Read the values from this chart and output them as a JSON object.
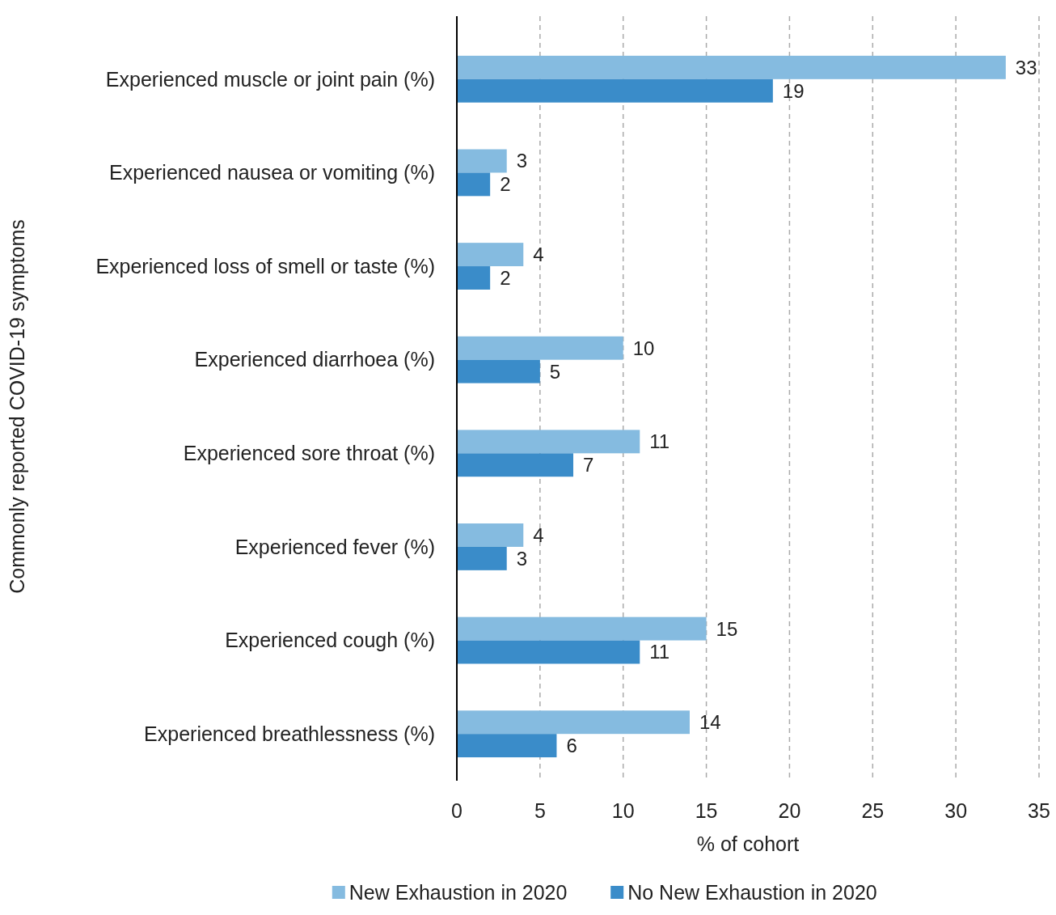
{
  "chart_data": {
    "type": "bar",
    "orientation": "horizontal",
    "xlabel": "% of cohort",
    "ylabel": "Commonly reported COVID-19 symptoms",
    "categories": [
      "Experienced muscle or joint pain (%)",
      "Experienced nausea or vomiting (%)",
      "Experienced loss of smell or taste (%)",
      "Experienced diarrhoea (%)",
      "Experienced sore throat (%)",
      "Experienced fever (%)",
      "Experienced cough (%)",
      "Experienced breathlessness (%)"
    ],
    "series": [
      {
        "name": "New Exhaustion in 2020",
        "color": "#85bbe0",
        "values": [
          33,
          3,
          4,
          10,
          11,
          4,
          15,
          14
        ]
      },
      {
        "name": "No New Exhaustion in 2020",
        "color": "#3a8cc9",
        "values": [
          19,
          2,
          2,
          5,
          7,
          3,
          11,
          6
        ]
      }
    ],
    "xlim": [
      0,
      35
    ],
    "xticks": [
      0,
      5,
      10,
      15,
      20,
      25,
      30,
      35
    ],
    "grid": "x",
    "legend": "bottom",
    "data_labels": true
  }
}
